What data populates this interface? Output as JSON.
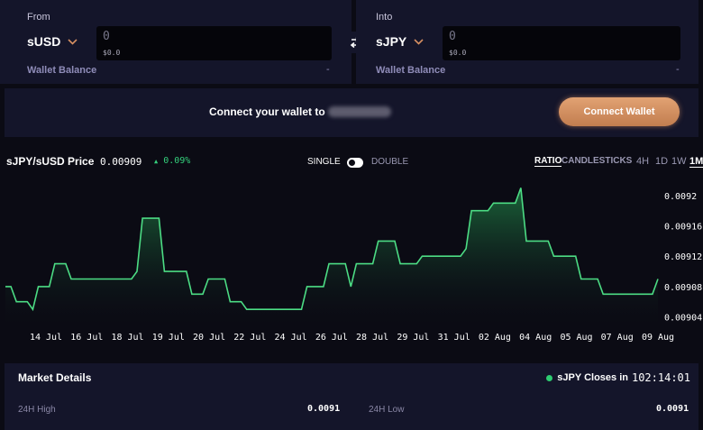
{
  "from": {
    "title": "From",
    "token": "sUSD",
    "amount": "0",
    "amount_usd": "$0.0",
    "balance_label": "Wallet Balance",
    "balance_value": "-"
  },
  "into": {
    "title": "Into",
    "token": "sJPY",
    "amount": "0",
    "amount_usd": "$0.0",
    "balance_label": "Wallet Balance",
    "balance_value": "-"
  },
  "connect": {
    "message": "Connect your wallet to",
    "button_label": "Connect Wallet"
  },
  "chart_header": {
    "pair": "sJPY/sUSD Price",
    "price": "0.00909",
    "change": "0.09%",
    "mode_single": "SINGLE",
    "mode_double": "DOUBLE",
    "tab_ratio": "RATIO",
    "tab_candlesticks": "CANDLESTICKS",
    "timeframes": [
      "4H",
      "1D",
      "1W",
      "1M"
    ],
    "active_timeframe": "1M"
  },
  "colors": {
    "accent": "#d68f62",
    "line": "#4cdc84",
    "positive": "#34d07c",
    "panel": "#14152a",
    "background": "#0b0b14"
  },
  "chart_data": {
    "type": "area",
    "title": "",
    "xlabel": "",
    "ylabel": "",
    "x_tick_labels": [
      "14 Jul",
      "16 Jul",
      "18 Jul",
      "19 Jul",
      "20 Jul",
      "22 Jul",
      "24 Jul",
      "26 Jul",
      "28 Jul",
      "29 Jul",
      "31 Jul",
      "02 Aug",
      "04 Aug",
      "05 Aug",
      "07 Aug",
      "09 Aug"
    ],
    "y_tick_labels": [
      "0.0092",
      "0.00916",
      "0.00912",
      "0.00908",
      "0.00904"
    ],
    "ylim": [
      0.00903,
      0.00922
    ],
    "grid": false,
    "series": [
      {
        "values": [
          0.00908,
          0.00908,
          0.00906,
          0.00906,
          0.00906,
          0.00905,
          0.00908,
          0.00908,
          0.00908,
          0.00911,
          0.00911,
          0.00911,
          0.00909,
          0.00909,
          0.00909,
          0.00909,
          0.00909,
          0.00909,
          0.00909,
          0.00909,
          0.00909,
          0.00909,
          0.00909,
          0.00909,
          0.0091,
          0.00917,
          0.00917,
          0.00917,
          0.00917,
          0.0091,
          0.0091,
          0.0091,
          0.0091,
          0.0091,
          0.00907,
          0.00907,
          0.00907,
          0.00909,
          0.00909,
          0.00909,
          0.00909,
          0.00906,
          0.00906,
          0.00906,
          0.00905,
          0.00905,
          0.00905,
          0.00905,
          0.00905,
          0.00905,
          0.00905,
          0.00905,
          0.00905,
          0.00905,
          0.00905,
          0.00908,
          0.00908,
          0.00908,
          0.00908,
          0.00911,
          0.00911,
          0.00911,
          0.00911,
          0.00908,
          0.00911,
          0.00911,
          0.00911,
          0.00911,
          0.00914,
          0.00914,
          0.00914,
          0.00914,
          0.00911,
          0.00911,
          0.00911,
          0.00911,
          0.00912,
          0.00912,
          0.00912,
          0.00912,
          0.00912,
          0.00912,
          0.00912,
          0.00912,
          0.00913,
          0.00918,
          0.00918,
          0.00918,
          0.00918,
          0.00919,
          0.00919,
          0.00919,
          0.00919,
          0.00919,
          0.00921,
          0.00914,
          0.00914,
          0.00914,
          0.00914,
          0.00914,
          0.00912,
          0.00912,
          0.00912,
          0.00912,
          0.00912,
          0.00909,
          0.00909,
          0.00909,
          0.00909,
          0.00907,
          0.00907,
          0.00907,
          0.00907,
          0.00907,
          0.00907,
          0.00907,
          0.00907,
          0.00907,
          0.00907,
          0.00909
        ]
      }
    ]
  },
  "market": {
    "title": "Market Details",
    "close_label": "sJPY Closes in",
    "close_time": "102:14:01",
    "high_label": "24H High",
    "high_value": "0.0091",
    "low_label": "24H Low",
    "low_value": "0.0091"
  }
}
